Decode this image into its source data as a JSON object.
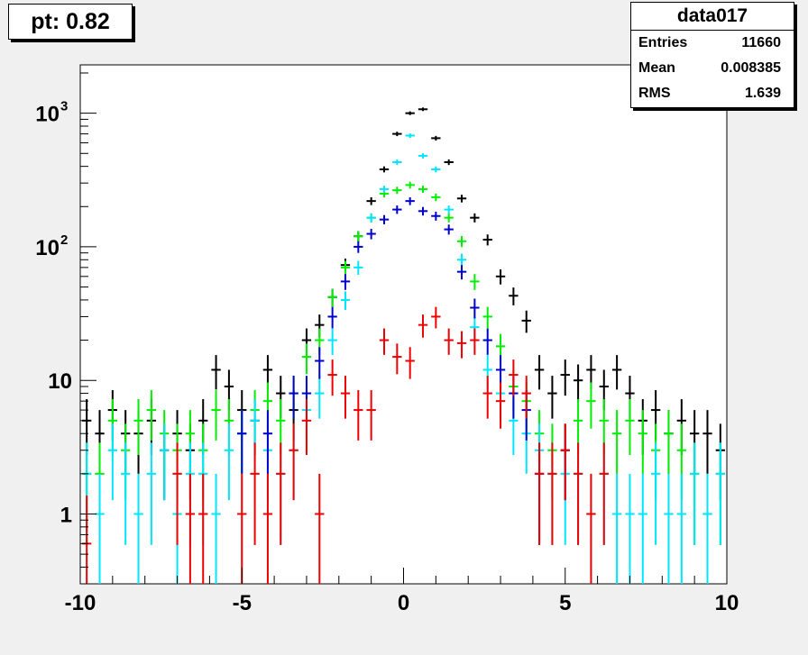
{
  "title": "pt: 0.82",
  "stats": {
    "name": "data017",
    "rows": [
      {
        "label": "Entries",
        "value": "11660"
      },
      {
        "label": "Mean",
        "value": "0.008385"
      },
      {
        "label": "RMS",
        "value": "1.639"
      }
    ]
  },
  "chart_data": {
    "type": "scatter",
    "title": "pt: 0.82",
    "xlabel": "",
    "ylabel": "",
    "xlim": [
      -10,
      10
    ],
    "ylim": [
      0.3,
      2300
    ],
    "log_y": true,
    "bin_width": 0.4,
    "x_ticks": [
      {
        "v": -10,
        "label": "-10"
      },
      {
        "v": -5,
        "label": "-5"
      },
      {
        "v": 0,
        "label": "0"
      },
      {
        "v": 5,
        "label": "5"
      },
      {
        "v": 10,
        "label": "10"
      }
    ],
    "y_ticks": [
      {
        "v": 1,
        "label": "1",
        "sup": ""
      },
      {
        "v": 10,
        "label": "10",
        "sup": ""
      },
      {
        "v": 100,
        "label": "10",
        "sup": "2"
      },
      {
        "v": 1000,
        "label": "10",
        "sup": "3"
      }
    ],
    "series": [
      {
        "color": "#000000",
        "points": [
          [
            -9.8,
            5
          ],
          [
            -9.4,
            4
          ],
          [
            -9.0,
            6
          ],
          [
            -8.6,
            4
          ],
          [
            -8.2,
            4
          ],
          [
            -7.8,
            5
          ],
          [
            -7.4,
            3
          ],
          [
            -7.0,
            4
          ],
          [
            -6.6,
            3
          ],
          [
            -6.2,
            5
          ],
          [
            -5.8,
            12
          ],
          [
            -5.4,
            9
          ],
          [
            -5.0,
            6
          ],
          [
            -4.6,
            5
          ],
          [
            -4.2,
            12
          ],
          [
            -3.8,
            8
          ],
          [
            -3.4,
            6
          ],
          [
            -3.0,
            20
          ],
          [
            -2.6,
            26
          ],
          [
            -2.2,
            42
          ],
          [
            -1.8,
            73
          ],
          [
            -1.4,
            120
          ],
          [
            -1.0,
            220
          ],
          [
            -0.6,
            380
          ],
          [
            -0.2,
            700
          ],
          [
            0.2,
            1000
          ],
          [
            0.6,
            1070
          ],
          [
            1.0,
            650
          ],
          [
            1.4,
            430
          ],
          [
            1.8,
            230
          ],
          [
            2.2,
            165
          ],
          [
            2.6,
            113
          ],
          [
            3.0,
            60
          ],
          [
            3.4,
            43
          ],
          [
            3.8,
            28
          ],
          [
            4.2,
            12
          ],
          [
            4.6,
            8
          ],
          [
            5.0,
            11
          ],
          [
            5.4,
            10
          ],
          [
            5.8,
            12
          ],
          [
            6.2,
            9
          ],
          [
            6.6,
            12
          ],
          [
            7.0,
            8
          ],
          [
            7.4,
            5
          ],
          [
            7.8,
            6
          ],
          [
            8.2,
            4
          ],
          [
            8.6,
            5
          ],
          [
            9.0,
            4
          ],
          [
            9.4,
            4
          ],
          [
            9.8,
            3
          ]
        ]
      },
      {
        "color": "#00ee00",
        "points": [
          [
            -9.8,
            2
          ],
          [
            -9.4,
            2
          ],
          [
            -9.0,
            5
          ],
          [
            -8.6,
            3
          ],
          [
            -8.2,
            5
          ],
          [
            -7.8,
            6
          ],
          [
            -7.4,
            4
          ],
          [
            -7.0,
            3
          ],
          [
            -6.6,
            4
          ],
          [
            -6.2,
            3
          ],
          [
            -5.8,
            6
          ],
          [
            -5.4,
            5
          ],
          [
            -5.0,
            4
          ],
          [
            -4.6,
            6
          ],
          [
            -4.2,
            7
          ],
          [
            -3.8,
            5
          ],
          [
            -3.4,
            8
          ],
          [
            -3.0,
            15
          ],
          [
            -2.6,
            20
          ],
          [
            -2.2,
            42
          ],
          [
            -1.8,
            70
          ],
          [
            -1.4,
            120
          ],
          [
            -1.0,
            165
          ],
          [
            -0.6,
            250
          ],
          [
            -0.2,
            265
          ],
          [
            0.2,
            290
          ],
          [
            0.6,
            270
          ],
          [
            1.0,
            235
          ],
          [
            1.4,
            165
          ],
          [
            1.8,
            110
          ],
          [
            2.2,
            55
          ],
          [
            2.6,
            30
          ],
          [
            3.0,
            18
          ],
          [
            3.4,
            9
          ],
          [
            3.8,
            7
          ],
          [
            4.2,
            4
          ],
          [
            4.6,
            3
          ],
          [
            5.0,
            3
          ],
          [
            5.4,
            5
          ],
          [
            5.8,
            7
          ],
          [
            6.2,
            5
          ],
          [
            6.6,
            4
          ],
          [
            7.0,
            5
          ],
          [
            7.4,
            4
          ],
          [
            7.8,
            3
          ],
          [
            8.2,
            4
          ],
          [
            8.6,
            3
          ],
          [
            9.0,
            2
          ],
          [
            9.4,
            1
          ],
          [
            9.8,
            2
          ]
        ]
      },
      {
        "color": "#00e5ff",
        "points": [
          [
            -9.8,
            2
          ],
          [
            -9.4,
            1
          ],
          [
            -9.0,
            3
          ],
          [
            -8.6,
            2
          ],
          [
            -8.2,
            1
          ],
          [
            -7.8,
            2
          ],
          [
            -7.4,
            3
          ],
          [
            -7.0,
            1
          ],
          [
            -6.6,
            2
          ],
          [
            -6.2,
            2
          ],
          [
            -5.8,
            1
          ],
          [
            -5.4,
            3
          ],
          [
            -5.0,
            4
          ],
          [
            -4.6,
            5
          ],
          [
            -4.2,
            3
          ],
          [
            -3.8,
            2
          ],
          [
            -3.4,
            3
          ],
          [
            -3.0,
            6
          ],
          [
            -2.6,
            8
          ],
          [
            -2.2,
            20
          ],
          [
            -1.8,
            40
          ],
          [
            -1.4,
            70
          ],
          [
            -1.0,
            165
          ],
          [
            -0.6,
            270
          ],
          [
            -0.2,
            430
          ],
          [
            0.2,
            680
          ],
          [
            0.6,
            480
          ],
          [
            1.0,
            380
          ],
          [
            1.4,
            190
          ],
          [
            1.8,
            80
          ],
          [
            2.2,
            25
          ],
          [
            2.6,
            12
          ],
          [
            3.0,
            8
          ],
          [
            3.4,
            5
          ],
          [
            3.8,
            4
          ],
          [
            4.2,
            3
          ],
          [
            4.6,
            2
          ],
          [
            5.0,
            2
          ],
          [
            5.4,
            2
          ],
          [
            5.8,
            1
          ],
          [
            6.2,
            2
          ],
          [
            6.6,
            1
          ],
          [
            7.0,
            1
          ],
          [
            7.4,
            1
          ],
          [
            7.8,
            2
          ],
          [
            8.2,
            1
          ],
          [
            8.6,
            1
          ],
          [
            9.0,
            2
          ],
          [
            9.4,
            1
          ],
          [
            9.8,
            2
          ]
        ]
      },
      {
        "color": "#0000cc",
        "points": [
          [
            -5.0,
            4
          ],
          [
            -4.2,
            4
          ],
          [
            -3.4,
            8
          ],
          [
            -3.0,
            8
          ],
          [
            -2.6,
            14
          ],
          [
            -2.2,
            30
          ],
          [
            -1.8,
            55
          ],
          [
            -1.4,
            100
          ],
          [
            -1.0,
            125
          ],
          [
            -0.6,
            160
          ],
          [
            -0.2,
            190
          ],
          [
            0.2,
            220
          ],
          [
            0.6,
            185
          ],
          [
            1.0,
            170
          ],
          [
            1.4,
            135
          ],
          [
            1.8,
            65
          ],
          [
            2.2,
            35
          ],
          [
            2.6,
            20
          ],
          [
            3.0,
            12
          ],
          [
            3.4,
            8
          ],
          [
            3.8,
            6
          ],
          [
            4.2,
            2
          ],
          [
            5.0,
            3
          ]
        ]
      },
      {
        "color": "#ee0000",
        "points": [
          [
            -9.8,
            0.6
          ],
          [
            -7.0,
            2
          ],
          [
            -6.6,
            1
          ],
          [
            -6.2,
            1
          ],
          [
            -5.0,
            1
          ],
          [
            -4.6,
            2
          ],
          [
            -4.2,
            1
          ],
          [
            -3.8,
            2
          ],
          [
            -3.4,
            3
          ],
          [
            -3.0,
            5
          ],
          [
            -2.6,
            1
          ],
          [
            -2.2,
            11
          ],
          [
            -1.8,
            8
          ],
          [
            -1.4,
            6
          ],
          [
            -1.0,
            6
          ],
          [
            -0.6,
            20
          ],
          [
            -0.2,
            15
          ],
          [
            0.2,
            14
          ],
          [
            0.6,
            26
          ],
          [
            1.0,
            30
          ],
          [
            1.4,
            20
          ],
          [
            1.8,
            19
          ],
          [
            2.2,
            20
          ],
          [
            2.6,
            8
          ],
          [
            3.0,
            7
          ],
          [
            3.4,
            11
          ],
          [
            3.8,
            8
          ],
          [
            4.2,
            2
          ],
          [
            4.6,
            2
          ],
          [
            5.0,
            3
          ],
          [
            5.4,
            2
          ],
          [
            5.8,
            1
          ],
          [
            6.2,
            2
          ]
        ]
      }
    ]
  }
}
